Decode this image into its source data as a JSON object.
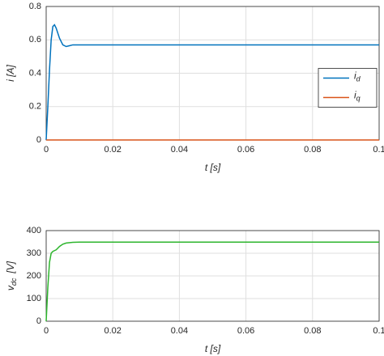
{
  "chart_data": [
    {
      "type": "line",
      "x": [
        0,
        0.0005,
        0.001,
        0.0015,
        0.002,
        0.0025,
        0.003,
        0.004,
        0.005,
        0.006,
        0.007,
        0.008,
        0.01,
        0.02,
        0.04,
        0.06,
        0.08,
        0.1
      ],
      "series": [
        {
          "name": "i",
          "subscript": "d",
          "color": "#0072bd",
          "values": [
            0,
            0.2,
            0.42,
            0.6,
            0.68,
            0.69,
            0.67,
            0.61,
            0.57,
            0.56,
            0.565,
            0.57,
            0.57,
            0.57,
            0.57,
            0.57,
            0.57,
            0.57
          ]
        },
        {
          "name": "i",
          "subscript": "q",
          "color": "#d95319",
          "values": [
            0,
            0,
            0,
            0,
            0,
            0,
            0,
            0,
            0,
            0,
            0,
            0,
            0,
            0,
            0,
            0,
            0,
            0
          ]
        }
      ],
      "xlim": [
        0,
        0.1
      ],
      "xticks": [
        0,
        0.02,
        0.04,
        0.06,
        0.08,
        0.1
      ],
      "ylim": [
        0,
        0.8
      ],
      "yticks": [
        0,
        0.2,
        0.4,
        0.6,
        0.8
      ],
      "xlabel": "t [s]",
      "ylabel": "i [A]",
      "grid": true,
      "legend": "right"
    },
    {
      "type": "line",
      "x": [
        0,
        0.0005,
        0.001,
        0.0015,
        0.002,
        0.003,
        0.004,
        0.005,
        0.006,
        0.008,
        0.01,
        0.015,
        0.02,
        0.04,
        0.06,
        0.08,
        0.1
      ],
      "series": [
        {
          "name": "v",
          "subscript": "dc",
          "color": "#2db52d",
          "values": [
            0,
            150,
            260,
            300,
            308,
            315,
            330,
            340,
            345,
            348,
            349,
            349,
            349,
            349,
            349,
            349,
            349
          ]
        }
      ],
      "xlim": [
        0,
        0.1
      ],
      "xticks": [
        0,
        0.02,
        0.04,
        0.06,
        0.08,
        0.1
      ],
      "ylim": [
        0,
        400
      ],
      "yticks": [
        0,
        100,
        200,
        300,
        400
      ],
      "xlabel": "t [s]",
      "ylabel": {
        "text": "v",
        "sub": "dc",
        "unit": "[V]"
      },
      "grid": true
    }
  ]
}
